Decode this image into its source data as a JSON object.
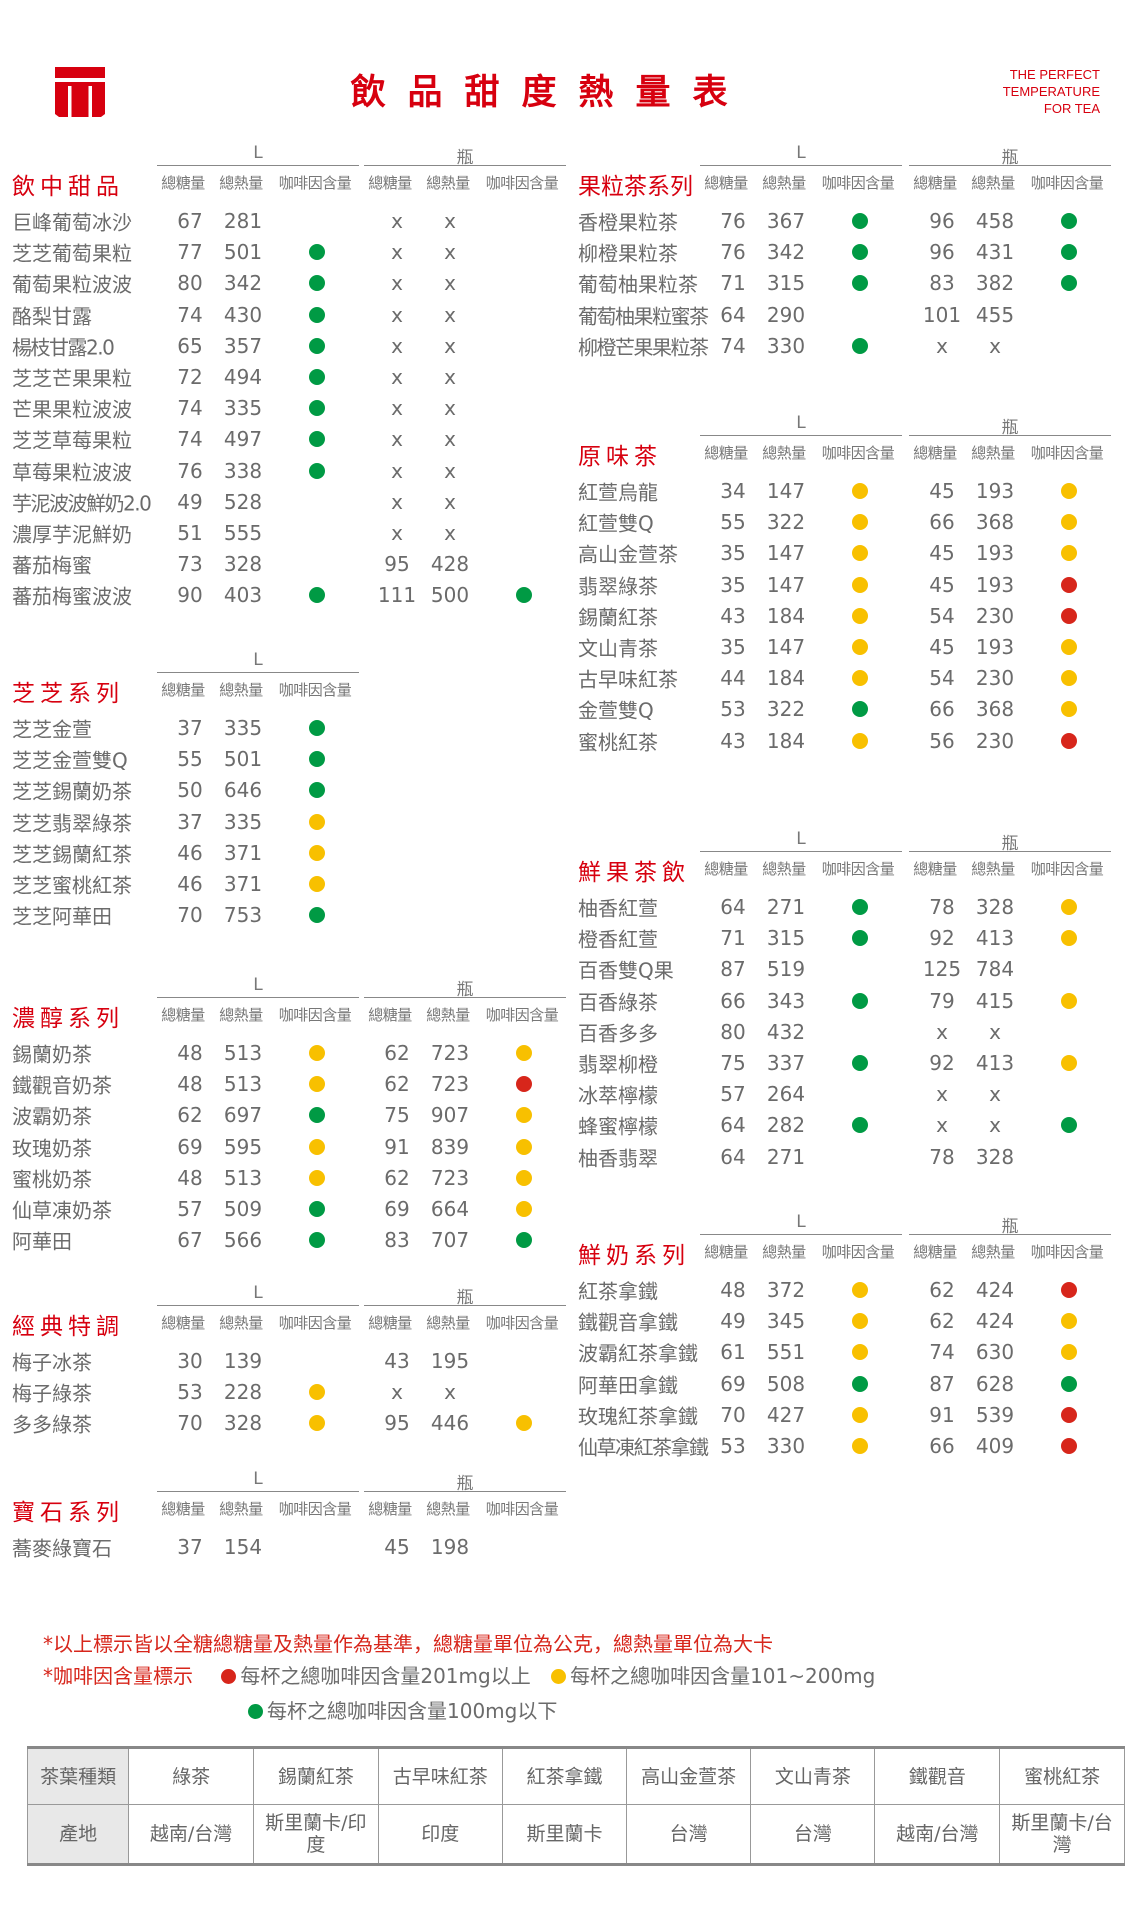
{
  "header": {
    "title": "飲品甜度熱量表",
    "tagline": [
      "THE PERFECT",
      "TEMPERATURE",
      "FOR TEA"
    ]
  },
  "columns": {
    "group_labels": {
      "L": "L",
      "bottle": "瓶"
    },
    "sugar": "總糖量",
    "calories": "總熱量",
    "caffeine": "咖啡因含量",
    "na": "x"
  },
  "caffeine_colors": {
    "g": "#009a44",
    "y": "#f8c000",
    "r": "#d7261b"
  },
  "sections": [
    {
      "title": "飲中甜品",
      "side": "left",
      "groups": [
        "L",
        "bottle"
      ],
      "rows": [
        [
          "巨峰葡萄冰沙",
          "67",
          "281",
          "",
          "x",
          "x",
          ""
        ],
        [
          "芝芝葡萄果粒",
          "77",
          "501",
          "g",
          "x",
          "x",
          ""
        ],
        [
          "葡萄果粒波波",
          "80",
          "342",
          "g",
          "x",
          "x",
          ""
        ],
        [
          "酪梨甘露",
          "74",
          "430",
          "g",
          "x",
          "x",
          ""
        ],
        [
          "楊枝甘露2.0",
          "65",
          "357",
          "g",
          "x",
          "x",
          ""
        ],
        [
          "芝芝芒果果粒",
          "72",
          "494",
          "g",
          "x",
          "x",
          ""
        ],
        [
          "芒果果粒波波",
          "74",
          "335",
          "g",
          "x",
          "x",
          ""
        ],
        [
          "芝芝草莓果粒",
          "74",
          "497",
          "g",
          "x",
          "x",
          ""
        ],
        [
          "草莓果粒波波",
          "76",
          "338",
          "g",
          "x",
          "x",
          ""
        ],
        [
          "芋泥波波鮮奶2.0",
          "49",
          "528",
          "",
          "x",
          "x",
          ""
        ],
        [
          "濃厚芋泥鮮奶",
          "51",
          "555",
          "",
          "x",
          "x",
          ""
        ],
        [
          "蕃茄梅蜜",
          "73",
          "328",
          "",
          "95",
          "428",
          ""
        ],
        [
          "蕃茄梅蜜波波",
          "90",
          "403",
          "g",
          "111",
          "500",
          "g"
        ]
      ]
    },
    {
      "title": "芝芝系列",
      "side": "left",
      "groups": [
        "L"
      ],
      "rows": [
        [
          "芝芝金萱",
          "37",
          "335",
          "g"
        ],
        [
          "芝芝金萱雙Q",
          "55",
          "501",
          "g"
        ],
        [
          "芝芝錫蘭奶茶",
          "50",
          "646",
          "g"
        ],
        [
          "芝芝翡翠綠茶",
          "37",
          "335",
          "y"
        ],
        [
          "芝芝錫蘭紅茶",
          "46",
          "371",
          "y"
        ],
        [
          "芝芝蜜桃紅茶",
          "46",
          "371",
          "y"
        ],
        [
          "芝芝阿華田",
          "70",
          "753",
          "g"
        ]
      ]
    },
    {
      "title": "濃醇系列",
      "side": "left",
      "groups": [
        "L",
        "bottle"
      ],
      "rows": [
        [
          "錫蘭奶茶",
          "48",
          "513",
          "y",
          "62",
          "723",
          "y"
        ],
        [
          "鐵觀音奶茶",
          "48",
          "513",
          "y",
          "62",
          "723",
          "r"
        ],
        [
          "波霸奶茶",
          "62",
          "697",
          "g",
          "75",
          "907",
          "y"
        ],
        [
          "玫瑰奶茶",
          "69",
          "595",
          "y",
          "91",
          "839",
          "y"
        ],
        [
          "蜜桃奶茶",
          "48",
          "513",
          "y",
          "62",
          "723",
          "y"
        ],
        [
          "仙草凍奶茶",
          "57",
          "509",
          "g",
          "69",
          "664",
          "y"
        ],
        [
          "阿華田",
          "67",
          "566",
          "g",
          "83",
          "707",
          "g"
        ]
      ]
    },
    {
      "title": "經典特調",
      "side": "left",
      "groups": [
        "L",
        "bottle"
      ],
      "rows": [
        [
          "梅子冰茶",
          "30",
          "139",
          "",
          "43",
          "195",
          ""
        ],
        [
          "梅子綠茶",
          "53",
          "228",
          "y",
          "x",
          "x",
          ""
        ],
        [
          "多多綠茶",
          "70",
          "328",
          "y",
          "95",
          "446",
          "y"
        ]
      ]
    },
    {
      "title": "寶石系列",
      "side": "left",
      "groups": [
        "L",
        "bottle"
      ],
      "rows": [
        [
          "蕎麥綠寶石",
          "37",
          "154",
          "",
          "45",
          "198",
          ""
        ]
      ]
    },
    {
      "title": "果粒茶系列",
      "side": "right",
      "groups": [
        "L",
        "bottle"
      ],
      "rows": [
        [
          "香橙果粒茶",
          "76",
          "367",
          "g",
          "96",
          "458",
          "g"
        ],
        [
          "柳橙果粒茶",
          "76",
          "342",
          "g",
          "96",
          "431",
          "g"
        ],
        [
          "葡萄柚果粒茶",
          "71",
          "315",
          "g",
          "83",
          "382",
          "g"
        ],
        [
          "葡萄柚果粒蜜茶",
          "64",
          "290",
          "",
          "101",
          "455",
          ""
        ],
        [
          "柳橙芒果果粒茶",
          "74",
          "330",
          "g",
          "x",
          "x",
          ""
        ]
      ]
    },
    {
      "title": "原味茶",
      "side": "right",
      "groups": [
        "L",
        "bottle"
      ],
      "rows": [
        [
          "紅萱烏龍",
          "34",
          "147",
          "y",
          "45",
          "193",
          "y"
        ],
        [
          "紅萱雙Q",
          "55",
          "322",
          "y",
          "66",
          "368",
          "y"
        ],
        [
          "高山金萱茶",
          "35",
          "147",
          "y",
          "45",
          "193",
          "y"
        ],
        [
          "翡翠綠茶",
          "35",
          "147",
          "y",
          "45",
          "193",
          "r"
        ],
        [
          "錫蘭紅茶",
          "43",
          "184",
          "y",
          "54",
          "230",
          "r"
        ],
        [
          "文山青茶",
          "35",
          "147",
          "y",
          "45",
          "193",
          "y"
        ],
        [
          "古早味紅茶",
          "44",
          "184",
          "y",
          "54",
          "230",
          "y"
        ],
        [
          "金萱雙Q",
          "53",
          "322",
          "g",
          "66",
          "368",
          "y"
        ],
        [
          "蜜桃紅茶",
          "43",
          "184",
          "y",
          "56",
          "230",
          "r"
        ]
      ]
    },
    {
      "title": "鮮果茶飲",
      "side": "right",
      "groups": [
        "L",
        "bottle"
      ],
      "rows": [
        [
          "柚香紅萱",
          "64",
          "271",
          "g",
          "78",
          "328",
          "y"
        ],
        [
          "橙香紅萱",
          "71",
          "315",
          "g",
          "92",
          "413",
          "y"
        ],
        [
          "百香雙Q果",
          "87",
          "519",
          "",
          "125",
          "784",
          ""
        ],
        [
          "百香綠茶",
          "66",
          "343",
          "g",
          "79",
          "415",
          "y"
        ],
        [
          "百香多多",
          "80",
          "432",
          "",
          "x",
          "x",
          ""
        ],
        [
          "翡翠柳橙",
          "75",
          "337",
          "g",
          "92",
          "413",
          "y"
        ],
        [
          "冰萃檸檬",
          "57",
          "264",
          "",
          "x",
          "x",
          ""
        ],
        [
          "蜂蜜檸檬",
          "64",
          "282",
          "g",
          "x",
          "x",
          "g"
        ],
        [
          "柚香翡翠",
          "64",
          "271",
          "",
          "78",
          "328",
          ""
        ]
      ]
    },
    {
      "title": "鮮奶系列",
      "side": "right",
      "groups": [
        "L",
        "bottle"
      ],
      "rows": [
        [
          "紅茶拿鐵",
          "48",
          "372",
          "y",
          "62",
          "424",
          "r"
        ],
        [
          "鐵觀音拿鐵",
          "49",
          "345",
          "y",
          "62",
          "424",
          "y"
        ],
        [
          "波霸紅茶拿鐵",
          "61",
          "551",
          "y",
          "74",
          "630",
          "y"
        ],
        [
          "阿華田拿鐵",
          "69",
          "508",
          "g",
          "87",
          "628",
          "g"
        ],
        [
          "玫瑰紅茶拿鐵",
          "70",
          "427",
          "y",
          "91",
          "539",
          "r"
        ],
        [
          "仙草凍紅茶拿鐵",
          "53",
          "330",
          "y",
          "66",
          "409",
          "r"
        ]
      ]
    }
  ],
  "notes": {
    "line1": "*以上標示皆以全糖總糖量及熱量作為基準，總糖量單位為公克，總熱量單位為大卡",
    "caffeine_label": "*咖啡因含量標示",
    "legend": [
      {
        "color": "r",
        "text": "每杯之總咖啡因含量201mg以上"
      },
      {
        "color": "y",
        "text": "每杯之總咖啡因含量101~200mg"
      },
      {
        "color": "g",
        "text": "每杯之總咖啡因含量100mg以下"
      }
    ]
  },
  "origin_table": {
    "row_headers": [
      "茶葉種類",
      "產地"
    ],
    "teas": [
      "綠茶",
      "錫蘭紅茶",
      "古早味紅茶",
      "紅茶拿鐵",
      "高山金萱茶",
      "文山青茶",
      "鐵觀音",
      "蜜桃紅茶"
    ],
    "origins": [
      "越南/台灣",
      "斯里蘭卡/印度",
      "印度",
      "斯里蘭卡",
      "台灣",
      "台灣",
      "越南/台灣",
      "斯里蘭卡/台灣"
    ]
  }
}
